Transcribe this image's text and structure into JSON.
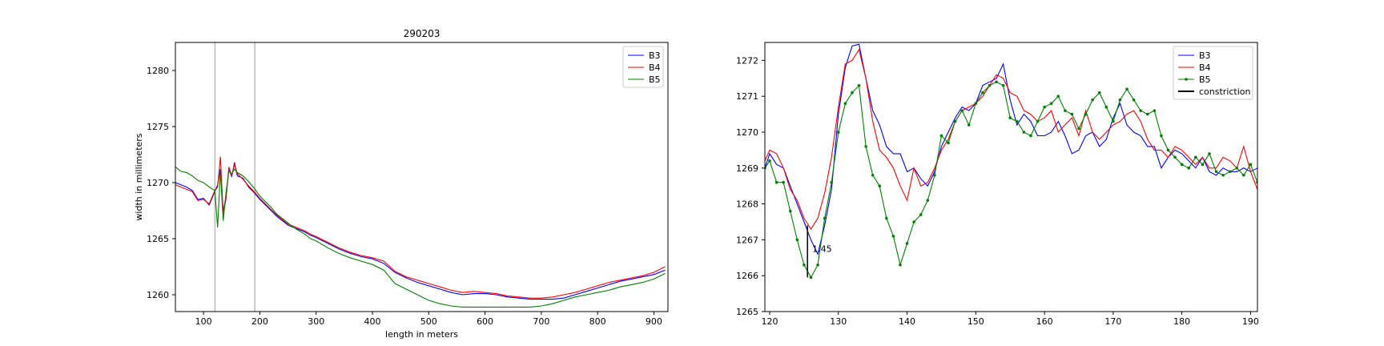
{
  "chart_data": [
    {
      "type": "line",
      "title": "290203",
      "xlabel": "length in meters",
      "ylabel": "width in millimeters",
      "xlim": [
        50,
        925
      ],
      "ylim": [
        1258.5,
        1282.5
      ],
      "xticks": [
        100,
        200,
        300,
        400,
        500,
        600,
        700,
        800,
        900
      ],
      "yticks": [
        1260,
        1265,
        1270,
        1275,
        1280
      ],
      "vlines": [
        120,
        191
      ],
      "legend_position": "top-right",
      "series": [
        {
          "name": "B3",
          "color": "#0000ff",
          "x": [
            50,
            60,
            70,
            80,
            90,
            100,
            110,
            120,
            125,
            130,
            135,
            140,
            145,
            150,
            155,
            160,
            170,
            180,
            190,
            200,
            210,
            220,
            230,
            240,
            250,
            260,
            270,
            280,
            290,
            300,
            320,
            340,
            360,
            380,
            400,
            420,
            440,
            460,
            480,
            500,
            520,
            540,
            560,
            580,
            600,
            620,
            640,
            660,
            680,
            700,
            720,
            740,
            760,
            780,
            800,
            820,
            840,
            860,
            880,
            900,
            920
          ],
          "y": [
            1270.0,
            1269.8,
            1269.6,
            1269.3,
            1268.5,
            1268.6,
            1268.0,
            1269.2,
            1269.8,
            1271.2,
            1267.4,
            1268.8,
            1271.3,
            1270.5,
            1271.8,
            1270.6,
            1270.4,
            1269.6,
            1269.1,
            1268.5,
            1268.0,
            1267.5,
            1267.0,
            1266.6,
            1266.2,
            1266.0,
            1265.8,
            1265.6,
            1265.3,
            1265.1,
            1264.6,
            1264.1,
            1263.7,
            1263.4,
            1263.2,
            1262.8,
            1262.0,
            1261.5,
            1261.1,
            1260.8,
            1260.5,
            1260.2,
            1260.0,
            1260.1,
            1260.1,
            1260.0,
            1259.8,
            1259.7,
            1259.6,
            1259.6,
            1259.6,
            1259.7,
            1260.0,
            1260.3,
            1260.6,
            1260.9,
            1261.2,
            1261.4,
            1261.6,
            1261.8,
            1262.2
          ]
        },
        {
          "name": "B4",
          "color": "#ff0000",
          "x": [
            50,
            60,
            70,
            80,
            90,
            100,
            110,
            120,
            125,
            130,
            135,
            140,
            145,
            150,
            155,
            160,
            170,
            180,
            190,
            200,
            210,
            220,
            230,
            240,
            250,
            260,
            270,
            280,
            290,
            300,
            320,
            340,
            360,
            380,
            400,
            420,
            440,
            460,
            480,
            500,
            520,
            540,
            560,
            580,
            600,
            620,
            640,
            660,
            680,
            700,
            720,
            740,
            760,
            780,
            800,
            820,
            840,
            860,
            880,
            900,
            920
          ],
          "y": [
            1269.8,
            1269.6,
            1269.4,
            1269.2,
            1268.4,
            1268.5,
            1268.1,
            1269.3,
            1269.6,
            1272.3,
            1267.2,
            1268.6,
            1271.4,
            1270.6,
            1271.6,
            1270.8,
            1270.3,
            1269.7,
            1269.2,
            1268.6,
            1268.1,
            1267.6,
            1267.1,
            1266.7,
            1266.3,
            1266.1,
            1265.9,
            1265.7,
            1265.4,
            1265.2,
            1264.7,
            1264.2,
            1263.8,
            1263.5,
            1263.3,
            1263.0,
            1262.1,
            1261.6,
            1261.3,
            1261.0,
            1260.7,
            1260.4,
            1260.2,
            1260.3,
            1260.2,
            1260.1,
            1259.9,
            1259.8,
            1259.7,
            1259.7,
            1259.8,
            1260.0,
            1260.2,
            1260.5,
            1260.8,
            1261.1,
            1261.3,
            1261.5,
            1261.7,
            1262.0,
            1262.5
          ]
        },
        {
          "name": "B5",
          "color": "#008000",
          "x": [
            50,
            60,
            70,
            80,
            90,
            100,
            110,
            120,
            125,
            130,
            135,
            140,
            145,
            150,
            155,
            160,
            170,
            180,
            190,
            200,
            210,
            220,
            230,
            240,
            250,
            260,
            270,
            280,
            290,
            300,
            320,
            340,
            360,
            380,
            400,
            420,
            440,
            460,
            480,
            500,
            520,
            540,
            560,
            580,
            600,
            620,
            640,
            660,
            680,
            700,
            720,
            740,
            760,
            780,
            800,
            820,
            840,
            860,
            880,
            900,
            920
          ],
          "y": [
            1271.4,
            1271.0,
            1270.9,
            1270.6,
            1270.2,
            1270.0,
            1269.6,
            1269.3,
            1266.0,
            1271.0,
            1266.6,
            1269.2,
            1271.0,
            1270.8,
            1271.2,
            1270.9,
            1270.6,
            1270.1,
            1269.5,
            1268.8,
            1268.3,
            1267.8,
            1267.2,
            1266.8,
            1266.4,
            1266.0,
            1265.7,
            1265.4,
            1265.0,
            1264.8,
            1264.2,
            1263.7,
            1263.3,
            1263.0,
            1262.7,
            1262.2,
            1261.0,
            1260.5,
            1260.0,
            1259.5,
            1259.2,
            1259.0,
            1258.9,
            1258.9,
            1258.9,
            1258.9,
            1258.9,
            1258.9,
            1258.9,
            1259.0,
            1259.2,
            1259.5,
            1259.8,
            1260.0,
            1260.2,
            1260.4,
            1260.7,
            1260.9,
            1261.1,
            1261.4,
            1261.9
          ]
        }
      ]
    },
    {
      "type": "line",
      "title": "",
      "xlabel": "",
      "ylabel": "",
      "xlim": [
        119.3,
        191
      ],
      "ylim": [
        1265,
        1272.5
      ],
      "xticks": [
        120,
        130,
        140,
        150,
        160,
        170,
        180,
        190
      ],
      "yticks": [
        1265,
        1266,
        1267,
        1268,
        1269,
        1270,
        1271,
        1272
      ],
      "legend_position": "top-right",
      "annotation": {
        "text": "1.45",
        "x": 126.2,
        "y": 1266.75
      },
      "constriction": {
        "x": 125.5,
        "y1": 1265.95,
        "y2": 1267.4,
        "color": "#000000"
      },
      "series": [
        {
          "name": "B3",
          "color": "#0000ff",
          "markers": false,
          "x": [
            119.3,
            120,
            121,
            122,
            123,
            124,
            125,
            126,
            127,
            128,
            129,
            130,
            131,
            132,
            133,
            134,
            135,
            136,
            137,
            138,
            139,
            140,
            141,
            142,
            143,
            144,
            145,
            146,
            147,
            148,
            149,
            150,
            151,
            152,
            153,
            154,
            155,
            156,
            157,
            158,
            159,
            160,
            161,
            162,
            163,
            164,
            165,
            166,
            167,
            168,
            169,
            170,
            171,
            172,
            173,
            174,
            175,
            176,
            177,
            178,
            179,
            180,
            181,
            182,
            183,
            184,
            185,
            186,
            187,
            188,
            189,
            190,
            191
          ],
          "y": [
            1269.0,
            1269.4,
            1269.1,
            1269.0,
            1268.5,
            1268.0,
            1267.5,
            1267.0,
            1266.6,
            1267.4,
            1268.4,
            1270.5,
            1271.8,
            1272.4,
            1272.45,
            1271.5,
            1270.6,
            1270.2,
            1269.6,
            1269.4,
            1269.4,
            1268.9,
            1269.0,
            1268.7,
            1268.5,
            1268.9,
            1269.6,
            1270.0,
            1270.4,
            1270.7,
            1270.6,
            1270.8,
            1271.3,
            1271.4,
            1271.5,
            1271.9,
            1270.9,
            1270.2,
            1270.5,
            1270.3,
            1269.9,
            1269.9,
            1270.0,
            1270.3,
            1269.9,
            1269.4,
            1269.5,
            1269.9,
            1270.0,
            1269.6,
            1269.8,
            1270.4,
            1270.8,
            1270.2,
            1270.0,
            1269.9,
            1269.6,
            1269.6,
            1269.0,
            1269.3,
            1269.5,
            1269.4,
            1269.2,
            1269.0,
            1269.3,
            1268.9,
            1268.8,
            1269.0,
            1268.9,
            1268.9,
            1269.0,
            1268.9,
            1269.0
          ]
        },
        {
          "name": "B4",
          "color": "#ff0000",
          "markers": false,
          "x": [
            119.3,
            120,
            121,
            122,
            123,
            124,
            125,
            126,
            127,
            128,
            129,
            130,
            131,
            132,
            133,
            134,
            135,
            136,
            137,
            138,
            139,
            140,
            141,
            142,
            143,
            144,
            145,
            146,
            147,
            148,
            149,
            150,
            151,
            152,
            153,
            154,
            155,
            156,
            157,
            158,
            159,
            160,
            161,
            162,
            163,
            164,
            165,
            166,
            167,
            168,
            169,
            170,
            171,
            172,
            173,
            174,
            175,
            176,
            177,
            178,
            179,
            180,
            181,
            182,
            183,
            184,
            185,
            186,
            187,
            188,
            189,
            190,
            191
          ],
          "y": [
            1269.2,
            1269.5,
            1269.4,
            1269.0,
            1268.4,
            1268.1,
            1267.6,
            1267.3,
            1267.6,
            1268.3,
            1269.3,
            1270.7,
            1271.9,
            1272.0,
            1272.3,
            1271.5,
            1270.3,
            1269.5,
            1269.3,
            1269.0,
            1268.5,
            1268.1,
            1269.0,
            1268.5,
            1268.6,
            1269.0,
            1269.5,
            1269.8,
            1270.3,
            1270.6,
            1270.7,
            1270.8,
            1271.0,
            1271.3,
            1271.6,
            1271.5,
            1271.1,
            1271.0,
            1270.6,
            1270.5,
            1270.3,
            1270.4,
            1270.6,
            1270.0,
            1270.2,
            1270.4,
            1269.9,
            1270.6,
            1270.0,
            1269.8,
            1270.0,
            1270.2,
            1270.3,
            1270.5,
            1270.6,
            1270.3,
            1269.8,
            1269.5,
            1269.5,
            1269.3,
            1269.6,
            1269.5,
            1269.3,
            1269.1,
            1269.3,
            1269.0,
            1269.0,
            1269.3,
            1269.2,
            1269.0,
            1269.6,
            1268.9,
            1268.4
          ]
        },
        {
          "name": "B5",
          "color": "#008000",
          "markers": true,
          "x": [
            119.3,
            120,
            121,
            122,
            123,
            124,
            125,
            126,
            127,
            128,
            129,
            130,
            131,
            132,
            133,
            134,
            135,
            136,
            137,
            138,
            139,
            140,
            141,
            142,
            143,
            144,
            145,
            146,
            147,
            148,
            149,
            150,
            151,
            152,
            153,
            154,
            155,
            156,
            157,
            158,
            159,
            160,
            161,
            162,
            163,
            164,
            165,
            166,
            167,
            168,
            169,
            170,
            171,
            172,
            173,
            174,
            175,
            176,
            177,
            178,
            179,
            180,
            181,
            182,
            183,
            184,
            185,
            186,
            187,
            188,
            189,
            190,
            191
          ],
          "y": [
            1269.0,
            1269.2,
            1268.6,
            1268.6,
            1267.8,
            1267.0,
            1266.3,
            1265.95,
            1266.3,
            1267.6,
            1268.6,
            1270.0,
            1270.8,
            1271.1,
            1271.3,
            1269.6,
            1268.8,
            1268.5,
            1267.6,
            1267.1,
            1266.3,
            1266.9,
            1267.5,
            1267.7,
            1268.1,
            1268.8,
            1269.9,
            1269.7,
            1270.3,
            1270.6,
            1270.2,
            1270.8,
            1271.1,
            1271.3,
            1271.4,
            1271.3,
            1270.4,
            1270.3,
            1270.0,
            1269.9,
            1270.3,
            1270.7,
            1270.8,
            1271.0,
            1270.6,
            1270.5,
            1270.1,
            1270.5,
            1270.9,
            1271.1,
            1270.7,
            1270.3,
            1270.9,
            1271.2,
            1270.9,
            1270.6,
            1270.5,
            1270.6,
            1269.9,
            1269.5,
            1269.3,
            1269.1,
            1269.0,
            1269.3,
            1269.1,
            1269.4,
            1268.9,
            1268.8,
            1268.9,
            1269.0,
            1268.8,
            1269.1,
            1268.6
          ]
        },
        {
          "name": "constriction",
          "color": "#000000",
          "markers": false,
          "x": [],
          "y": []
        }
      ]
    }
  ]
}
